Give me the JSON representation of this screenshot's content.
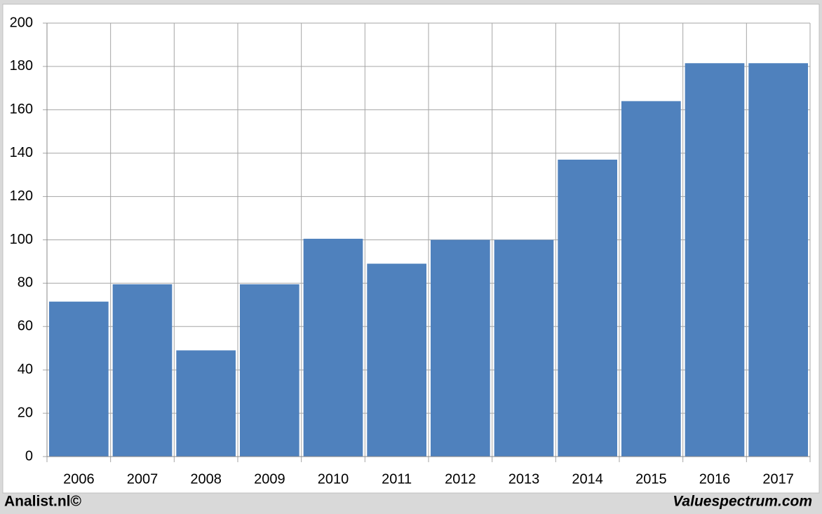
{
  "chart_data": {
    "type": "bar",
    "categories": [
      "2006",
      "2007",
      "2008",
      "2009",
      "2010",
      "2011",
      "2012",
      "2013",
      "2014",
      "2015",
      "2016",
      "2017"
    ],
    "values": [
      71.5,
      79.5,
      49,
      79.5,
      100.5,
      89,
      100,
      100,
      137,
      164,
      181.5,
      181.5
    ],
    "color": "#4f81bd",
    "ylim": [
      0,
      200
    ],
    "yticks": [
      0,
      20,
      40,
      60,
      80,
      100,
      120,
      140,
      160,
      180,
      200
    ],
    "grid": true,
    "footer_left": "Analist.nl©",
    "footer_right": "Valuespectrum.com"
  }
}
